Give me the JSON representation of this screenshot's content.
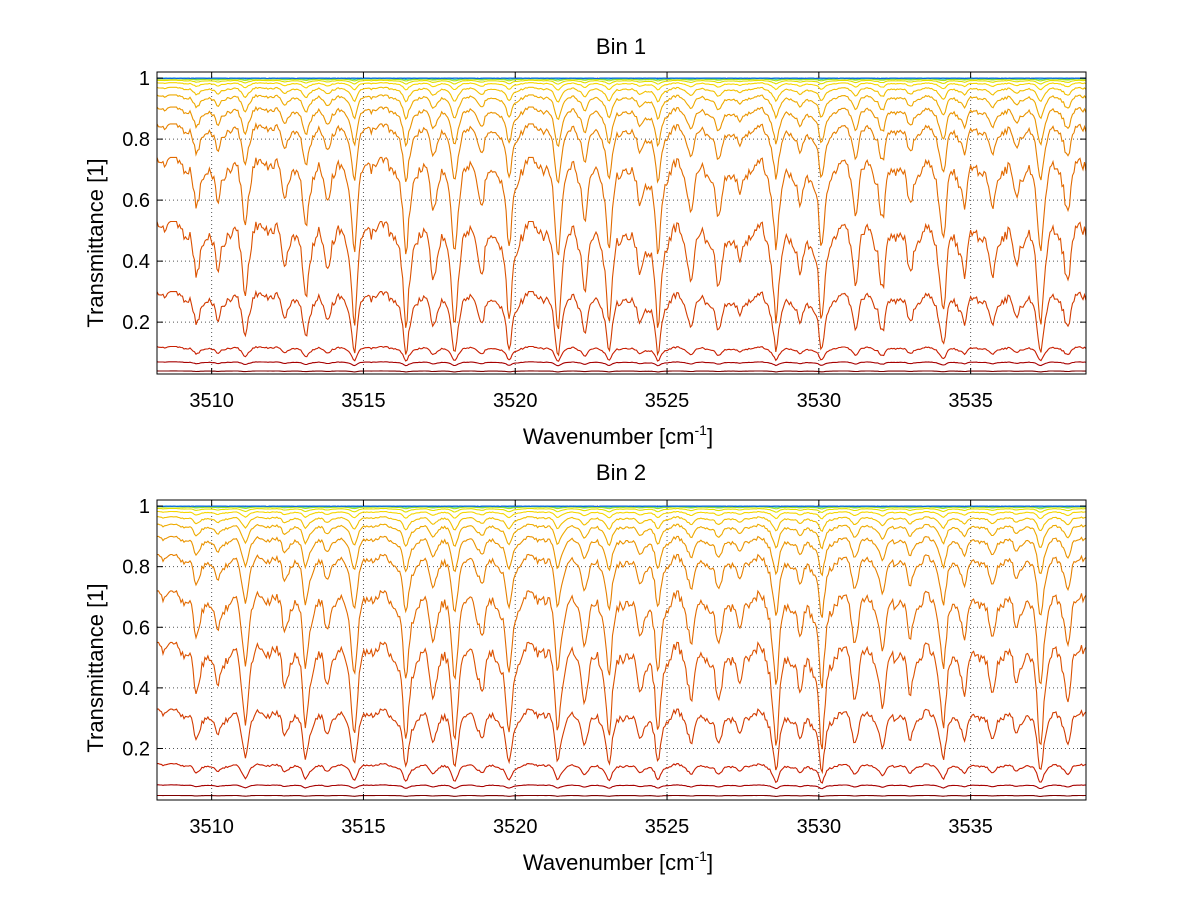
{
  "chart_data": [
    {
      "type": "line",
      "title": "Bin 1",
      "xlabel": "Wavenumber [cm",
      "xlabel_sup": "-1",
      "xlabel_end": "]",
      "ylabel": "Transmittance [1]",
      "xlim": [
        3508.2,
        3538.8
      ],
      "ylim": [
        0.03,
        1.02
      ],
      "xticks": [
        3510,
        3515,
        3520,
        3525,
        3530,
        3535
      ],
      "yticks": [
        0.2,
        0.4,
        0.6,
        0.8,
        1
      ],
      "ytick_labels": [
        "0.2",
        "0.4",
        "0.6",
        "0.8",
        "1"
      ],
      "grid": "dotted",
      "absorption_lines": [
        {
          "x": 3509.5,
          "d": 0.6
        },
        {
          "x": 3510.2,
          "d": 0.5
        },
        {
          "x": 3511.1,
          "d": 0.7
        },
        {
          "x": 3512.4,
          "d": 0.4
        },
        {
          "x": 3513.1,
          "d": 0.75
        },
        {
          "x": 3513.8,
          "d": 0.4
        },
        {
          "x": 3514.7,
          "d": 1.0
        },
        {
          "x": 3516.4,
          "d": 1.1
        },
        {
          "x": 3517.3,
          "d": 0.5
        },
        {
          "x": 3518.0,
          "d": 1.0
        },
        {
          "x": 3518.9,
          "d": 0.5
        },
        {
          "x": 3519.8,
          "d": 1.05
        },
        {
          "x": 3521.4,
          "d": 1.1
        },
        {
          "x": 3522.3,
          "d": 0.6
        },
        {
          "x": 3523.1,
          "d": 1.0
        },
        {
          "x": 3524.1,
          "d": 0.5
        },
        {
          "x": 3524.7,
          "d": 1.1
        },
        {
          "x": 3525.8,
          "d": 0.6
        },
        {
          "x": 3526.7,
          "d": 0.7
        },
        {
          "x": 3527.4,
          "d": 0.45
        },
        {
          "x": 3528.6,
          "d": 1.0
        },
        {
          "x": 3529.4,
          "d": 0.5
        },
        {
          "x": 3530.1,
          "d": 1.05
        },
        {
          "x": 3531.2,
          "d": 0.55
        },
        {
          "x": 3532.1,
          "d": 0.7
        },
        {
          "x": 3533.0,
          "d": 0.55
        },
        {
          "x": 3534.1,
          "d": 0.9
        },
        {
          "x": 3534.8,
          "d": 0.5
        },
        {
          "x": 3535.7,
          "d": 0.6
        },
        {
          "x": 3536.5,
          "d": 0.4
        },
        {
          "x": 3537.3,
          "d": 1.05
        },
        {
          "x": 3538.2,
          "d": 0.6
        }
      ],
      "series": [
        {
          "baseline": 0.04,
          "depth": 0.002,
          "color": "#7f0000"
        },
        {
          "baseline": 0.07,
          "depth": 0.008,
          "color": "#a60000"
        },
        {
          "baseline": 0.12,
          "depth": 0.03,
          "color": "#c81e00"
        },
        {
          "baseline": 0.3,
          "depth": 0.13,
          "color": "#d23c00"
        },
        {
          "baseline": 0.53,
          "depth": 0.22,
          "color": "#dc5200"
        },
        {
          "baseline": 0.74,
          "depth": 0.2,
          "color": "#e26a00"
        },
        {
          "baseline": 0.85,
          "depth": 0.12,
          "color": "#e68000"
        },
        {
          "baseline": 0.905,
          "depth": 0.08,
          "color": "#ea9400"
        },
        {
          "baseline": 0.945,
          "depth": 0.05,
          "color": "#eeaa00"
        },
        {
          "baseline": 0.97,
          "depth": 0.03,
          "color": "#f2c000"
        },
        {
          "baseline": 0.985,
          "depth": 0.015,
          "color": "#f6d600"
        },
        {
          "baseline": 0.993,
          "depth": 0.008,
          "color": "#e0e000"
        },
        {
          "baseline": 0.997,
          "depth": 0.004,
          "color": "#a8e020"
        },
        {
          "baseline": 0.999,
          "depth": 0.002,
          "color": "#40d080"
        },
        {
          "baseline": 1.0,
          "depth": 0.0,
          "color": "#20b8d8"
        },
        {
          "baseline": 1.0,
          "depth": 0.0,
          "color": "#1060e0"
        }
      ]
    },
    {
      "type": "line",
      "title": "Bin 2",
      "xlabel": "Wavenumber [cm",
      "xlabel_sup": "-1",
      "xlabel_end": "]",
      "ylabel": "Transmittance [1]",
      "xlim": [
        3508.2,
        3538.8
      ],
      "ylim": [
        0.03,
        1.02
      ],
      "xticks": [
        3510,
        3515,
        3520,
        3525,
        3530,
        3535
      ],
      "yticks": [
        0.2,
        0.4,
        0.6,
        0.8,
        1
      ],
      "ytick_labels": [
        "0.2",
        "0.4",
        "0.6",
        "0.8",
        "1"
      ],
      "grid": "dotted",
      "absorption_lines": [
        {
          "x": 3509.5,
          "d": 0.6
        },
        {
          "x": 3510.2,
          "d": 0.5
        },
        {
          "x": 3511.1,
          "d": 0.8
        },
        {
          "x": 3512.4,
          "d": 0.4
        },
        {
          "x": 3513.1,
          "d": 0.85
        },
        {
          "x": 3513.8,
          "d": 0.4
        },
        {
          "x": 3514.7,
          "d": 1.0
        },
        {
          "x": 3516.4,
          "d": 1.1
        },
        {
          "x": 3517.3,
          "d": 0.5
        },
        {
          "x": 3518.0,
          "d": 0.95
        },
        {
          "x": 3518.9,
          "d": 0.5
        },
        {
          "x": 3519.8,
          "d": 1.05
        },
        {
          "x": 3521.4,
          "d": 0.9
        },
        {
          "x": 3522.3,
          "d": 0.6
        },
        {
          "x": 3523.1,
          "d": 0.95
        },
        {
          "x": 3524.1,
          "d": 0.5
        },
        {
          "x": 3524.7,
          "d": 0.95
        },
        {
          "x": 3525.8,
          "d": 0.6
        },
        {
          "x": 3526.7,
          "d": 0.7
        },
        {
          "x": 3527.4,
          "d": 0.45
        },
        {
          "x": 3528.6,
          "d": 1.1
        },
        {
          "x": 3529.4,
          "d": 0.5
        },
        {
          "x": 3530.1,
          "d": 1.15
        },
        {
          "x": 3531.2,
          "d": 0.55
        },
        {
          "x": 3532.1,
          "d": 0.7
        },
        {
          "x": 3533.0,
          "d": 0.55
        },
        {
          "x": 3534.1,
          "d": 0.9
        },
        {
          "x": 3534.8,
          "d": 0.5
        },
        {
          "x": 3535.7,
          "d": 0.6
        },
        {
          "x": 3536.5,
          "d": 0.4
        },
        {
          "x": 3537.3,
          "d": 1.1
        },
        {
          "x": 3538.2,
          "d": 0.6
        }
      ],
      "series": [
        {
          "baseline": 0.045,
          "depth": 0.002,
          "color": "#7f0000"
        },
        {
          "baseline": 0.08,
          "depth": 0.008,
          "color": "#a60000"
        },
        {
          "baseline": 0.15,
          "depth": 0.04,
          "color": "#c81e00"
        },
        {
          "baseline": 0.33,
          "depth": 0.13,
          "color": "#d23c00"
        },
        {
          "baseline": 0.55,
          "depth": 0.22,
          "color": "#dc5200"
        },
        {
          "baseline": 0.72,
          "depth": 0.2,
          "color": "#e26a00"
        },
        {
          "baseline": 0.84,
          "depth": 0.13,
          "color": "#e68000"
        },
        {
          "baseline": 0.9,
          "depth": 0.08,
          "color": "#ea9400"
        },
        {
          "baseline": 0.94,
          "depth": 0.05,
          "color": "#eeaa00"
        },
        {
          "baseline": 0.965,
          "depth": 0.03,
          "color": "#f2c000"
        },
        {
          "baseline": 0.982,
          "depth": 0.015,
          "color": "#f6d600"
        },
        {
          "baseline": 0.992,
          "depth": 0.008,
          "color": "#e0e000"
        },
        {
          "baseline": 0.997,
          "depth": 0.004,
          "color": "#a8e020"
        },
        {
          "baseline": 0.999,
          "depth": 0.002,
          "color": "#40d080"
        },
        {
          "baseline": 1.0,
          "depth": 0.0,
          "color": "#20b8d8"
        },
        {
          "baseline": 1.0,
          "depth": 0.0,
          "color": "#1060e0"
        }
      ]
    }
  ]
}
